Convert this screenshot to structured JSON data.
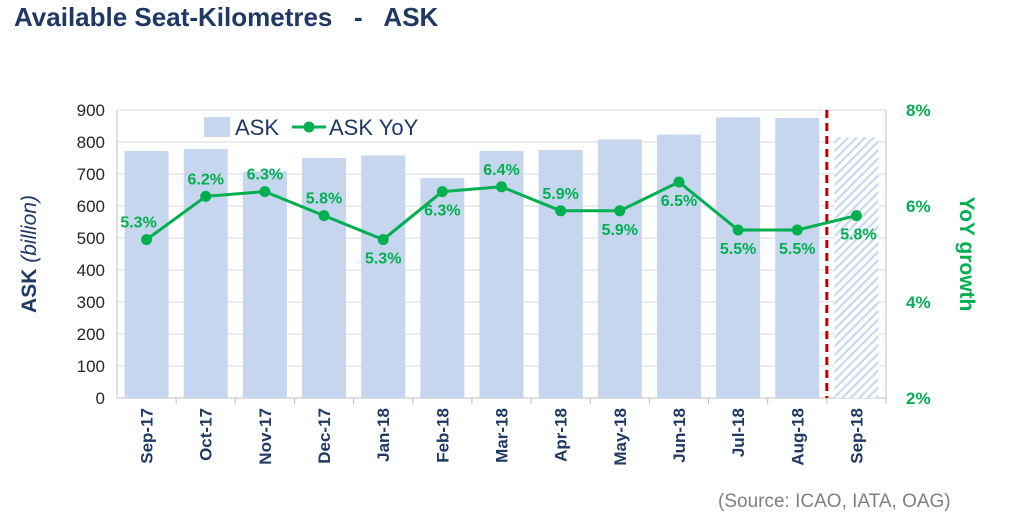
{
  "title": "Available Seat-Kilometres   -   ASK",
  "source": "(Source: ICAO, IATA, OAG)",
  "chart_data": {
    "type": "bar",
    "categories": [
      "Sep-17",
      "Oct-17",
      "Nov-17",
      "Dec-17",
      "Jan-18",
      "Feb-18",
      "Mar-18",
      "Apr-18",
      "May-18",
      "Jun-18",
      "Jul-18",
      "Aug-18",
      "Sep-18"
    ],
    "series": [
      {
        "name": "ASK",
        "type": "bar",
        "axis": "left",
        "values": [
          772,
          778,
          708,
          750,
          758,
          687,
          772,
          775,
          808,
          823,
          877,
          875,
          815
        ],
        "forecast_last": true
      },
      {
        "name": "ASK YoY",
        "type": "line",
        "axis": "right",
        "values": [
          5.3,
          6.2,
          6.3,
          5.8,
          5.3,
          6.3,
          6.4,
          5.9,
          5.9,
          6.5,
          5.5,
          5.5,
          5.8
        ],
        "labels": [
          "5.3%",
          "6.2%",
          "6.3%",
          "5.8%",
          "5.3%",
          "6.3%",
          "6.4%",
          "5.9%",
          "5.9%",
          "6.5%",
          "5.5%",
          "5.5%",
          "5.8%"
        ]
      }
    ],
    "ylabel_main": "ASK",
    "ylabel_unit": "(billion)",
    "y2label": "YoY growth",
    "ylim": [
      0,
      900
    ],
    "y_ticks": [
      "0",
      "100",
      "200",
      "300",
      "400",
      "500",
      "600",
      "700",
      "800",
      "900"
    ],
    "y2lim": [
      2,
      8
    ],
    "y2_ticks": [
      "2%",
      "4%",
      "6%",
      "8%"
    ],
    "gridlines": true,
    "legend": [
      "ASK",
      "ASK YoY"
    ],
    "legend_position": "top-left",
    "forecast_divider": "between Aug-18 and Sep-18",
    "colors": {
      "bar": "#c5d6ee",
      "line": "#00b050",
      "divider": "#c00000",
      "axis_text": "#1f3864",
      "grid": "#d9d9d9"
    }
  }
}
